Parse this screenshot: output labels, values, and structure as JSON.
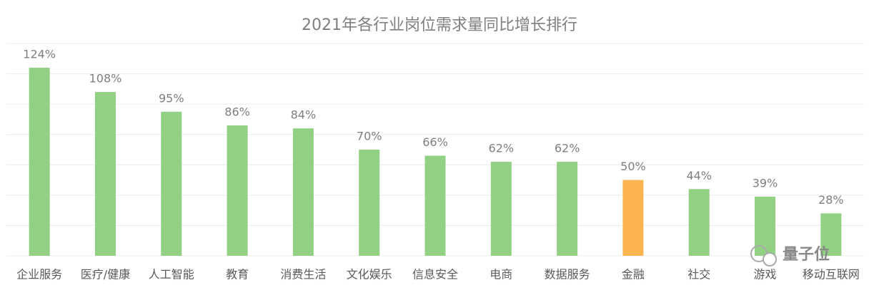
{
  "chart_data": {
    "type": "bar",
    "title": "2021年各行业岗位需求量同比增长排行",
    "categories": [
      "企业服务",
      "医疗/健康",
      "人工智能",
      "教育",
      "消费生活",
      "文化娱乐",
      "信息安全",
      "电商",
      "数据服务",
      "金融",
      "社交",
      "游戏",
      "移动互联网"
    ],
    "values": [
      124,
      108,
      95,
      86,
      84,
      70,
      66,
      62,
      62,
      50,
      44,
      39,
      28
    ],
    "value_labels": [
      "124%",
      "108%",
      "95%",
      "86%",
      "84%",
      "70%",
      "66%",
      "62%",
      "62%",
      "50%",
      "44%",
      "39%",
      "28%"
    ],
    "colors": [
      "#92d083",
      "#92d083",
      "#92d083",
      "#92d083",
      "#92d083",
      "#92d083",
      "#92d083",
      "#92d083",
      "#92d083",
      "#fbb450",
      "#92d083",
      "#92d083",
      "#92d083"
    ],
    "ylim": [
      0,
      140
    ],
    "yticks": [
      0,
      20,
      40,
      60,
      80,
      100,
      120,
      140
    ],
    "grid": true,
    "watermark": "量子位"
  }
}
